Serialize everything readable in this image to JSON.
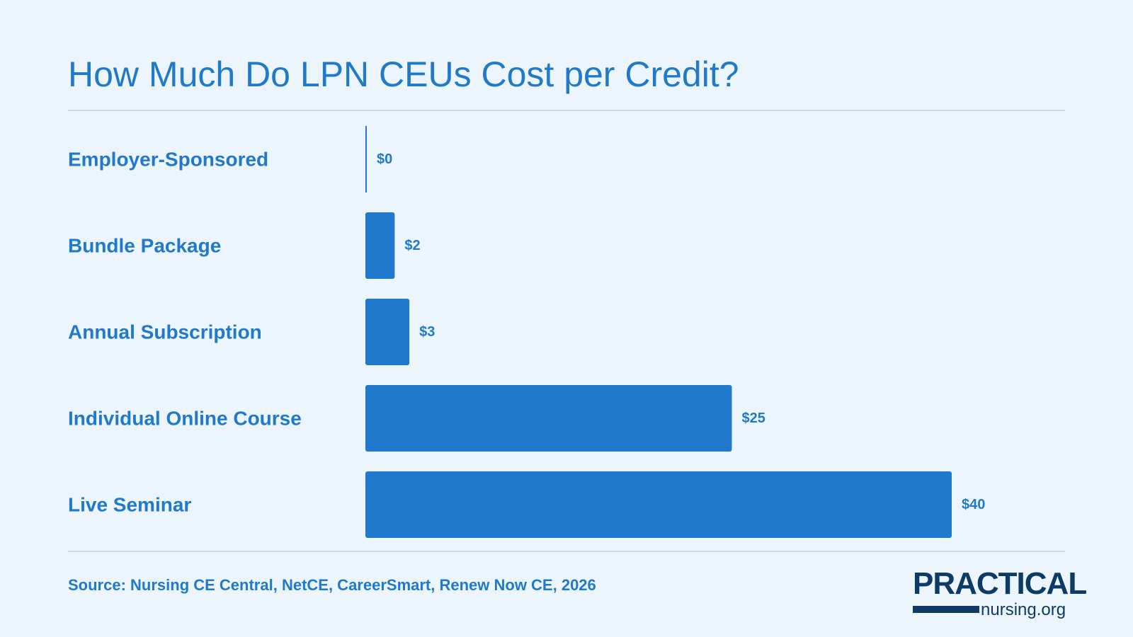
{
  "title": "How Much Do LPN CEUs Cost per Credit?",
  "source": "Source: Nursing CE Central, NetCE, CareerSmart, Renew Now CE, 2026",
  "logo": {
    "text_top": "PRACTICAL",
    "text_bottom": "nursing.org"
  },
  "colors": {
    "background": "#edf5fc",
    "accent": "#2079c9",
    "bar": "#2079cc",
    "logo": "#0d3b66",
    "rule": "#c9dcee"
  },
  "chart_data": {
    "type": "bar",
    "orientation": "horizontal",
    "title": "How Much Do LPN CEUs Cost per Credit?",
    "categories": [
      "Employer-Sponsored",
      "Bundle Package",
      "Annual Subscription",
      "Individual Online Course",
      "Live Seminar"
    ],
    "values": [
      0,
      2,
      3,
      25,
      40
    ],
    "value_labels": [
      "$0",
      "$2",
      "$3",
      "$25",
      "$40"
    ],
    "xlim": [
      0,
      40
    ],
    "grid": false,
    "legend": "none"
  }
}
